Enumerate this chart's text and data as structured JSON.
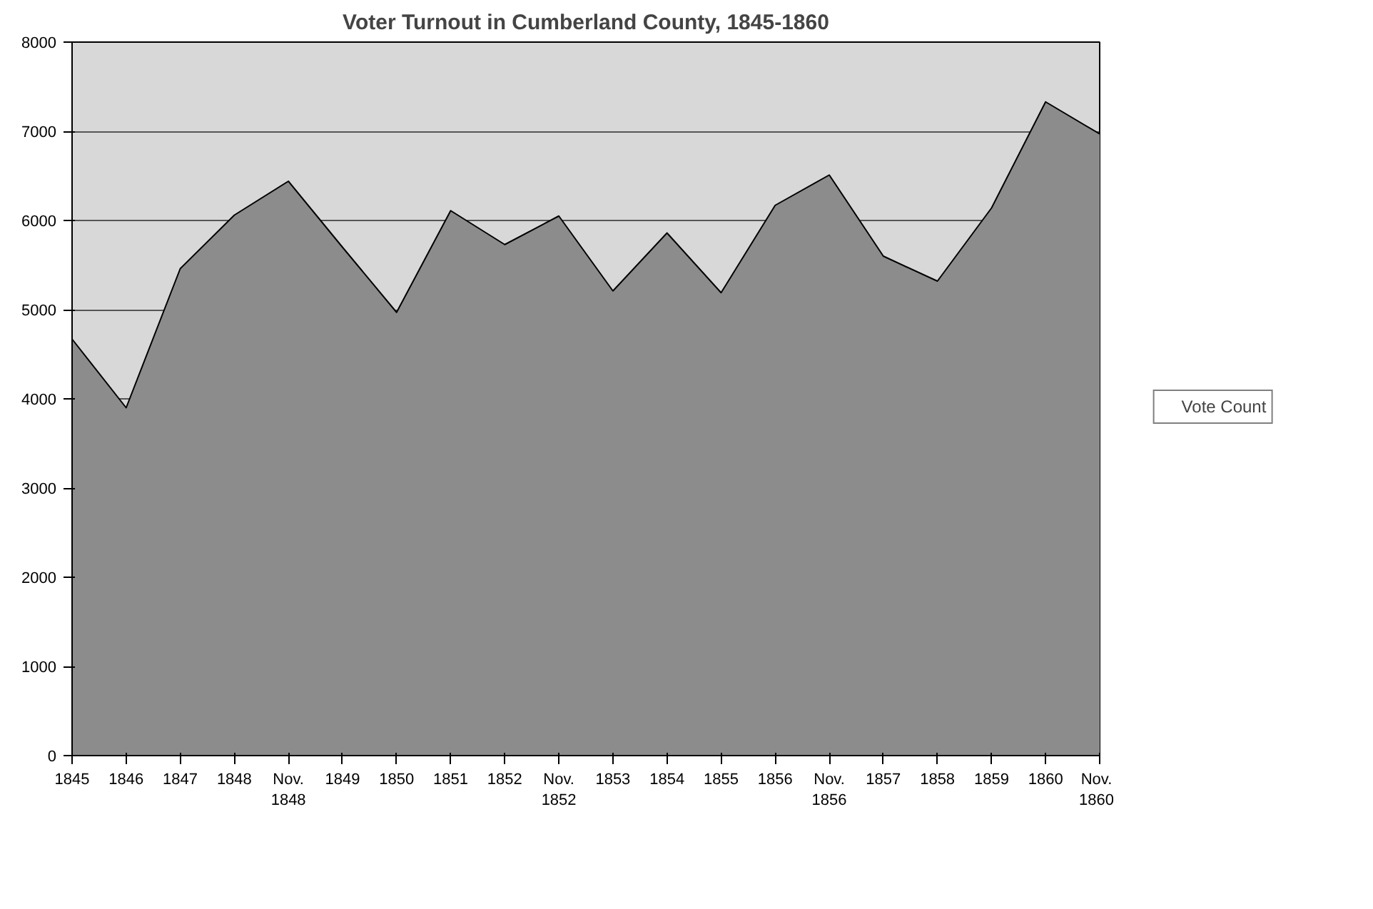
{
  "chart_data": {
    "type": "area",
    "title": "Voter Turnout in Cumberland County, 1845-1860",
    "categories": [
      "1845",
      "1846",
      "1847",
      "1848",
      "Nov.\n1848",
      "1849",
      "1850",
      "1851",
      "1852",
      "Nov.\n1852",
      "1853",
      "1854",
      "1855",
      "1856",
      "Nov.\n1856",
      "1857",
      "1858",
      "1859",
      "1860",
      "Nov.\n1860"
    ],
    "series": [
      {
        "name": "Vote Count",
        "color": "#8c8c8c",
        "values": [
          4670,
          3900,
          5460,
          6060,
          6440,
          5700,
          4970,
          6110,
          5730,
          6050,
          5210,
          5860,
          5190,
          6170,
          6510,
          5600,
          5320,
          6140,
          7330,
          6970
        ]
      }
    ],
    "ylim": [
      0,
      8000
    ],
    "yticks": [
      0,
      1000,
      2000,
      3000,
      4000,
      5000,
      6000,
      7000,
      8000
    ],
    "grid": "y",
    "legend": "right"
  }
}
